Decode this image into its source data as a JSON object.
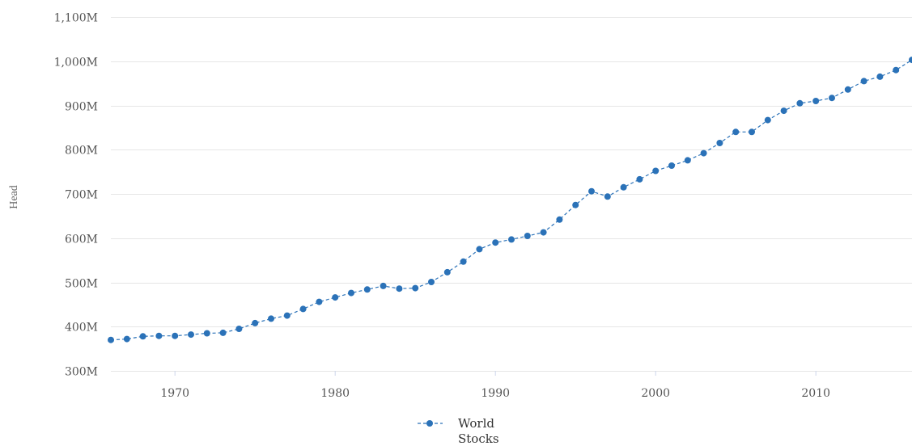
{
  "chart_data": {
    "type": "line",
    "title": "",
    "xlabel": "",
    "ylabel": "Head",
    "xlim": [
      1966,
      2016
    ],
    "ylim": [
      300000000,
      1100000000
    ],
    "grid": true,
    "legend_position": "bottom-center",
    "x_ticks": [
      1970,
      1980,
      1990,
      2000,
      2010
    ],
    "x_tick_labels": [
      "1970",
      "1980",
      "1990",
      "2000",
      "2010"
    ],
    "y_ticks": [
      300000000,
      400000000,
      500000000,
      600000000,
      700000000,
      800000000,
      900000000,
      1000000000,
      1100000000
    ],
    "y_tick_labels": [
      "300M",
      "400M",
      "500M",
      "600M",
      "700M",
      "800M",
      "900M",
      "1,000M",
      "1,100M"
    ],
    "x": [
      1966,
      1967,
      1968,
      1969,
      1970,
      1971,
      1972,
      1973,
      1974,
      1975,
      1976,
      1977,
      1978,
      1979,
      1980,
      1981,
      1982,
      1983,
      1984,
      1985,
      1986,
      1987,
      1988,
      1989,
      1990,
      1991,
      1992,
      1993,
      1994,
      1995,
      1996,
      1997,
      1998,
      1999,
      2000,
      2001,
      2002,
      2003,
      2004,
      2005,
      2006,
      2007,
      2008,
      2009,
      2010,
      2011,
      2012,
      2013,
      2014,
      2015,
      2016
    ],
    "series": [
      {
        "name": "World Stocks",
        "color": "#2b72b8",
        "values": [
          370000000,
          372000000,
          378000000,
          379000000,
          379000000,
          382000000,
          385000000,
          386000000,
          395000000,
          408000000,
          418000000,
          425000000,
          440000000,
          456000000,
          466000000,
          476000000,
          484000000,
          492000000,
          486000000,
          487000000,
          501000000,
          523000000,
          547000000,
          575000000,
          590000000,
          597000000,
          605000000,
          613000000,
          642000000,
          675000000,
          706000000,
          694000000,
          715000000,
          733000000,
          752000000,
          764000000,
          776000000,
          792000000,
          815000000,
          840000000,
          840000000,
          867000000,
          888000000,
          905000000,
          910000000,
          917000000,
          936000000,
          955000000,
          965000000,
          980000000,
          1003000000
        ]
      }
    ]
  },
  "legend": {
    "label_line1": "World",
    "label_line2": "Stocks"
  }
}
